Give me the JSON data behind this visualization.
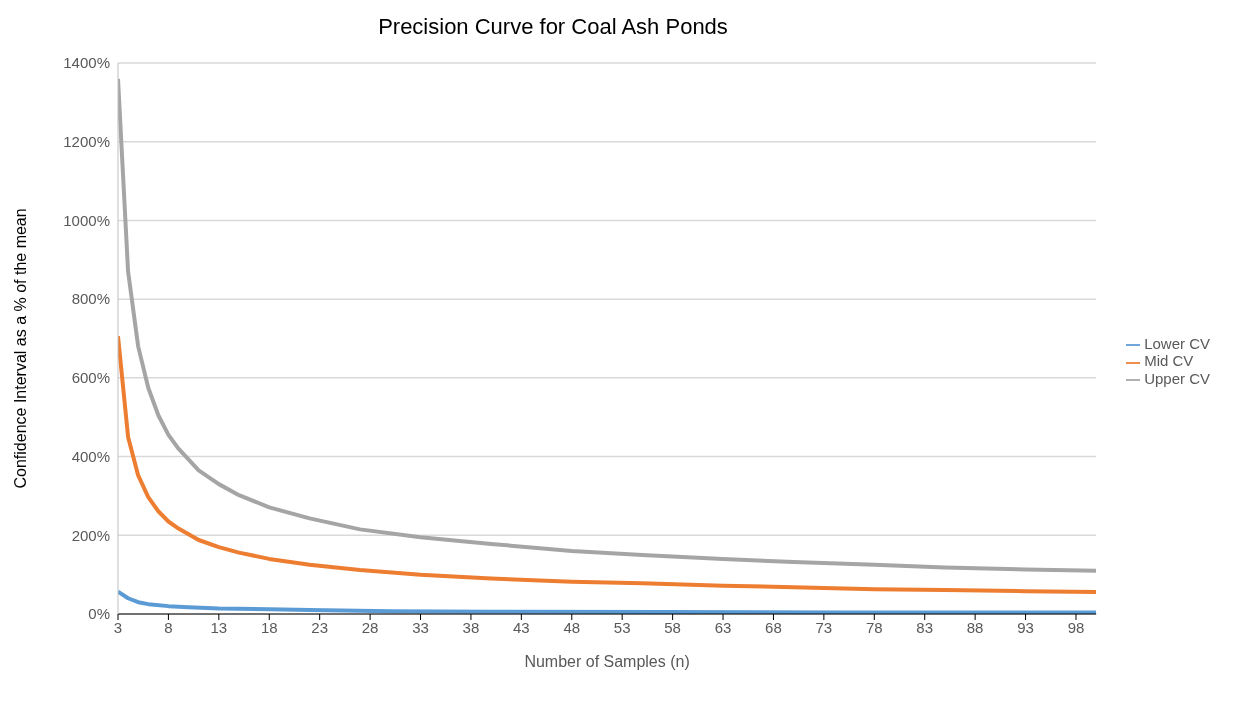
{
  "chart_data": {
    "type": "line",
    "title": "Precision Curve for Coal Ash Ponds",
    "xlabel": "Number of Samples (n)",
    "ylabel": "Confidence Interval as a % of the mean",
    "xlim": [
      3,
      100
    ],
    "xticks": [
      3,
      8,
      13,
      18,
      23,
      28,
      33,
      38,
      43,
      48,
      53,
      58,
      63,
      68,
      73,
      78,
      83,
      88,
      93,
      98
    ],
    "ylim": [
      0,
      1400
    ],
    "yticks": [
      {
        "value": 0,
        "label": "0%"
      },
      {
        "value": 200,
        "label": "200%"
      },
      {
        "value": 400,
        "label": "400%"
      },
      {
        "value": 600,
        "label": "600%"
      },
      {
        "value": 800,
        "label": "800%"
      },
      {
        "value": 1000,
        "label": "1000%"
      },
      {
        "value": 1200,
        "label": "1200%"
      },
      {
        "value": 1400,
        "label": "1400%"
      }
    ],
    "grid": "y",
    "legend": "right",
    "series": [
      {
        "name": "Lower CV",
        "color": "#5b9bd5",
        "x": [
          3,
          4,
          5,
          6,
          8,
          10,
          13,
          18,
          22,
          30,
          40,
          57,
          75,
          100
        ],
        "values": [
          57,
          40,
          30,
          25,
          20,
          17,
          14,
          12,
          10,
          7,
          6,
          5,
          4,
          4
        ]
      },
      {
        "name": "Mid CV",
        "color": "#ed7d31",
        "x": [
          3,
          4,
          5,
          6,
          7,
          8,
          9,
          11,
          13,
          15,
          18,
          22,
          27,
          33,
          40,
          48,
          55,
          63,
          70,
          78,
          85,
          93,
          100
        ],
        "values": [
          706,
          450,
          352,
          297,
          261,
          235,
          217,
          188,
          170,
          156,
          140,
          125,
          112,
          100,
          90,
          82,
          78,
          72,
          68,
          63,
          61,
          58,
          56
        ]
      },
      {
        "name": "Upper CV",
        "color": "#a5a5a5",
        "x": [
          3,
          4,
          5,
          6,
          7,
          8,
          9,
          11,
          13,
          15,
          18,
          22,
          27,
          33,
          40,
          48,
          55,
          63,
          70,
          78,
          85,
          93,
          100
        ],
        "values": [
          1360,
          870,
          680,
          575,
          505,
          455,
          420,
          365,
          330,
          302,
          271,
          243,
          215,
          195,
          178,
          160,
          150,
          140,
          132,
          125,
          118,
          113,
          110
        ]
      }
    ]
  }
}
